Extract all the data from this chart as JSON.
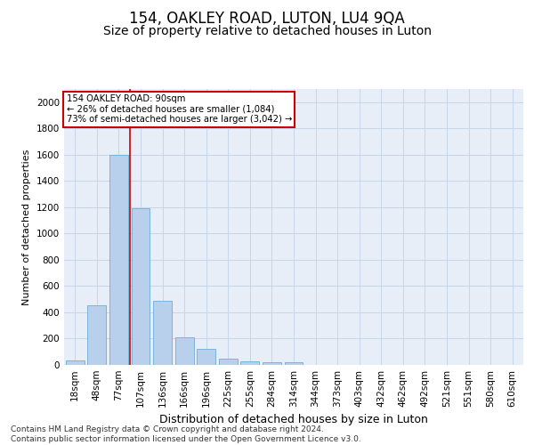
{
  "title": "154, OAKLEY ROAD, LUTON, LU4 9QA",
  "subtitle": "Size of property relative to detached houses in Luton",
  "xlabel": "Distribution of detached houses by size in Luton",
  "ylabel": "Number of detached properties",
  "categories": [
    "18sqm",
    "48sqm",
    "77sqm",
    "107sqm",
    "136sqm",
    "166sqm",
    "196sqm",
    "225sqm",
    "255sqm",
    "284sqm",
    "314sqm",
    "344sqm",
    "373sqm",
    "403sqm",
    "432sqm",
    "462sqm",
    "492sqm",
    "521sqm",
    "551sqm",
    "580sqm",
    "610sqm"
  ],
  "values": [
    35,
    455,
    1600,
    1190,
    490,
    210,
    120,
    45,
    30,
    20,
    20,
    0,
    0,
    0,
    0,
    0,
    0,
    0,
    0,
    0,
    0
  ],
  "bar_color": "#b8d0eb",
  "bar_edge_color": "#6aaed6",
  "grid_color": "#c8d4e8",
  "background_color": "#e8eef8",
  "annotation_box_text": "154 OAKLEY ROAD: 90sqm\n← 26% of detached houses are smaller (1,084)\n73% of semi-detached houses are larger (3,042) →",
  "annotation_box_color": "#cc0000",
  "red_line_index": 2,
  "ylim": [
    0,
    2100
  ],
  "yticks": [
    0,
    200,
    400,
    600,
    800,
    1000,
    1200,
    1400,
    1600,
    1800,
    2000
  ],
  "footnote": "Contains HM Land Registry data © Crown copyright and database right 2024.\nContains public sector information licensed under the Open Government Licence v3.0.",
  "title_fontsize": 12,
  "subtitle_fontsize": 10,
  "xlabel_fontsize": 9,
  "ylabel_fontsize": 8,
  "tick_fontsize": 7.5,
  "footnote_fontsize": 6.5
}
